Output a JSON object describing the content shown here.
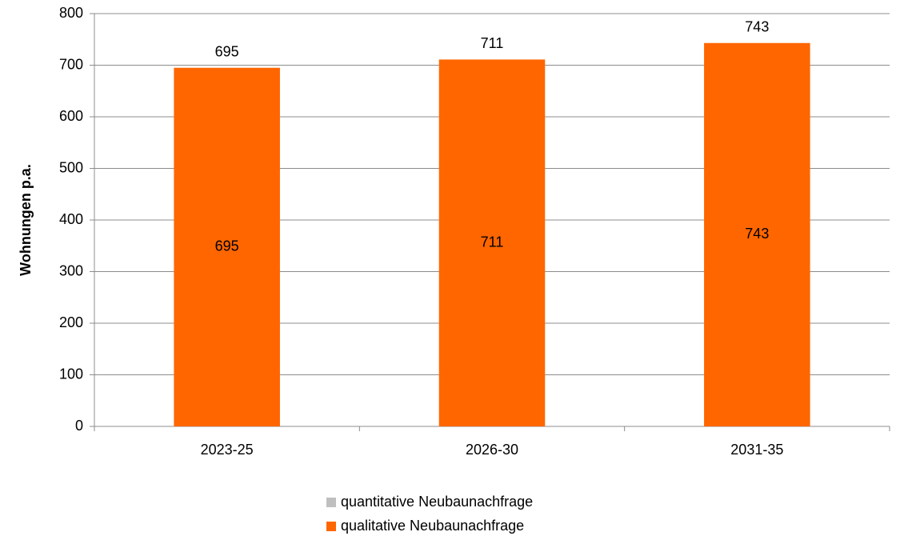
{
  "chart_data": {
    "type": "stacked_bar",
    "y_label": "Wohnungen p.a.",
    "categories": [
      "2023-25",
      "2026-30",
      "2031-35"
    ],
    "series": [
      {
        "name": "quantitative Neubaunachfrage",
        "color": "#bfbfbf",
        "values": [
          0,
          0,
          0
        ]
      },
      {
        "name": "qualitative Neubaunachfrage",
        "color": "#ff6600",
        "values": [
          695,
          711,
          743
        ]
      }
    ],
    "total_labels": [
      "695",
      "711",
      "743"
    ],
    "ylim": [
      0,
      800
    ],
    "yticks": [
      0,
      100,
      200,
      300,
      400,
      500,
      600,
      700,
      800
    ],
    "grid": true
  }
}
